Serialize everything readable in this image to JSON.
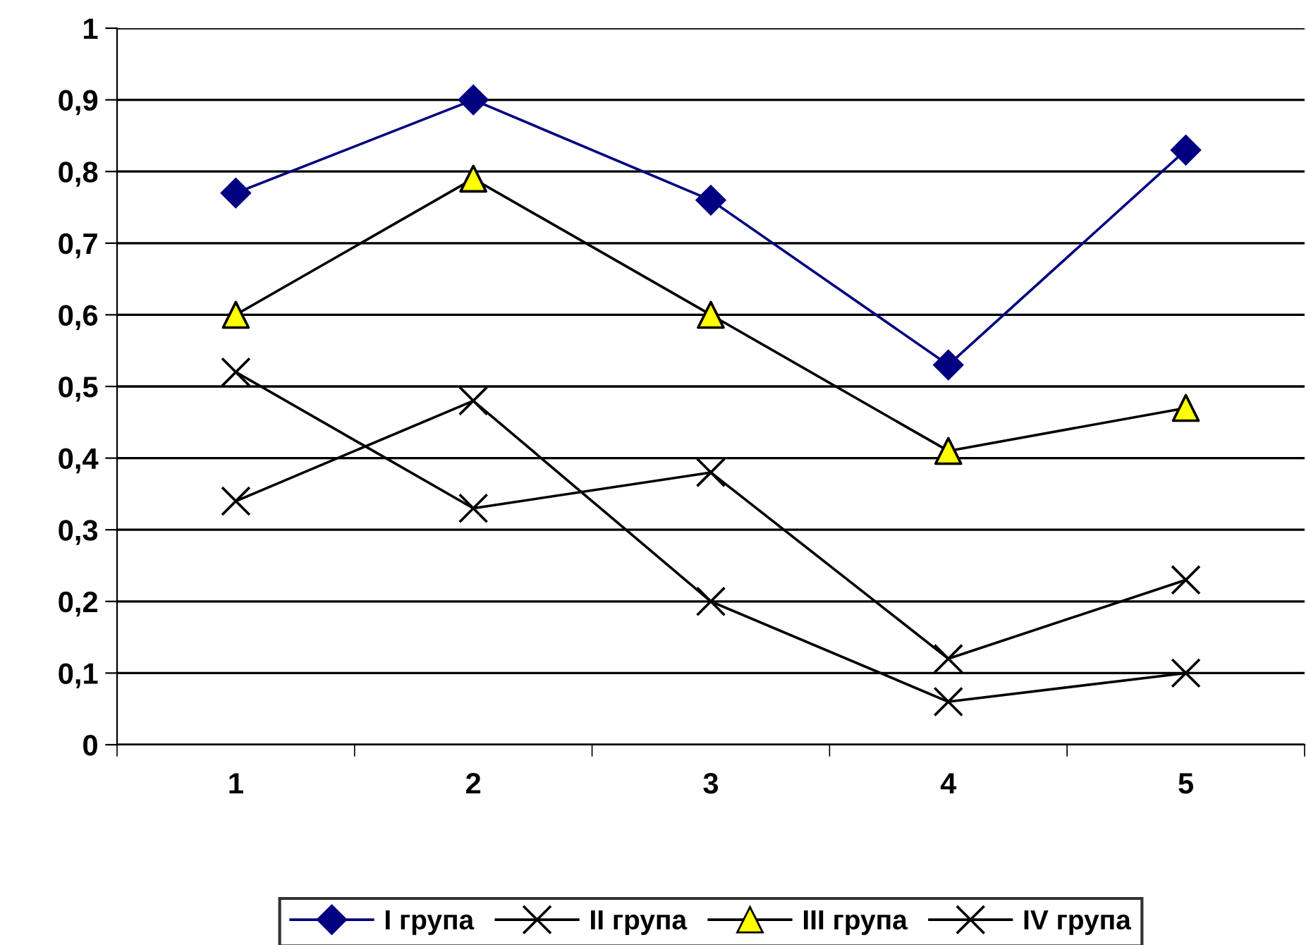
{
  "chart_data": {
    "type": "line",
    "categories": [
      "1",
      "2",
      "3",
      "4",
      "5"
    ],
    "series": [
      {
        "name": "I група",
        "color": "#000080",
        "marker": "diamond",
        "values": [
          0.77,
          0.9,
          0.76,
          0.53,
          0.83
        ]
      },
      {
        "name": "II група",
        "color": "#000000",
        "marker": "cross",
        "values": [
          0.52,
          0.33,
          0.38,
          0.12,
          0.23
        ]
      },
      {
        "name": "III група",
        "color": "#000000",
        "colors": [
          "#ffff00",
          "#ffff00",
          "#ffff00",
          "#ffff00",
          "#ffff00"
        ],
        "marker": "triangle",
        "values": [
          0.6,
          0.79,
          0.6,
          0.41,
          0.47
        ]
      },
      {
        "name": "IV група",
        "color": "#000000",
        "marker": "cross",
        "values": [
          0.34,
          0.48,
          0.2,
          0.06,
          0.1
        ]
      }
    ],
    "ylim": [
      0,
      1
    ],
    "yticks": [
      0,
      {
        "value": 0.1,
        "label": "0,1"
      },
      {
        "value": 0.2,
        "label": "0,2"
      },
      {
        "value": 0.3,
        "label": "0,3"
      },
      {
        "value": 0.4,
        "label": "0,4"
      },
      {
        "value": 0.5,
        "label": "0,5"
      },
      {
        "value": 0.6,
        "label": "0,6"
      },
      {
        "value": 0.7,
        "label": "0,7"
      },
      {
        "value": 0.8,
        "label": "0,8"
      },
      {
        "value": 0.9,
        "label": "0,9"
      },
      1
    ],
    "grid": "y",
    "legend": "bottom"
  }
}
